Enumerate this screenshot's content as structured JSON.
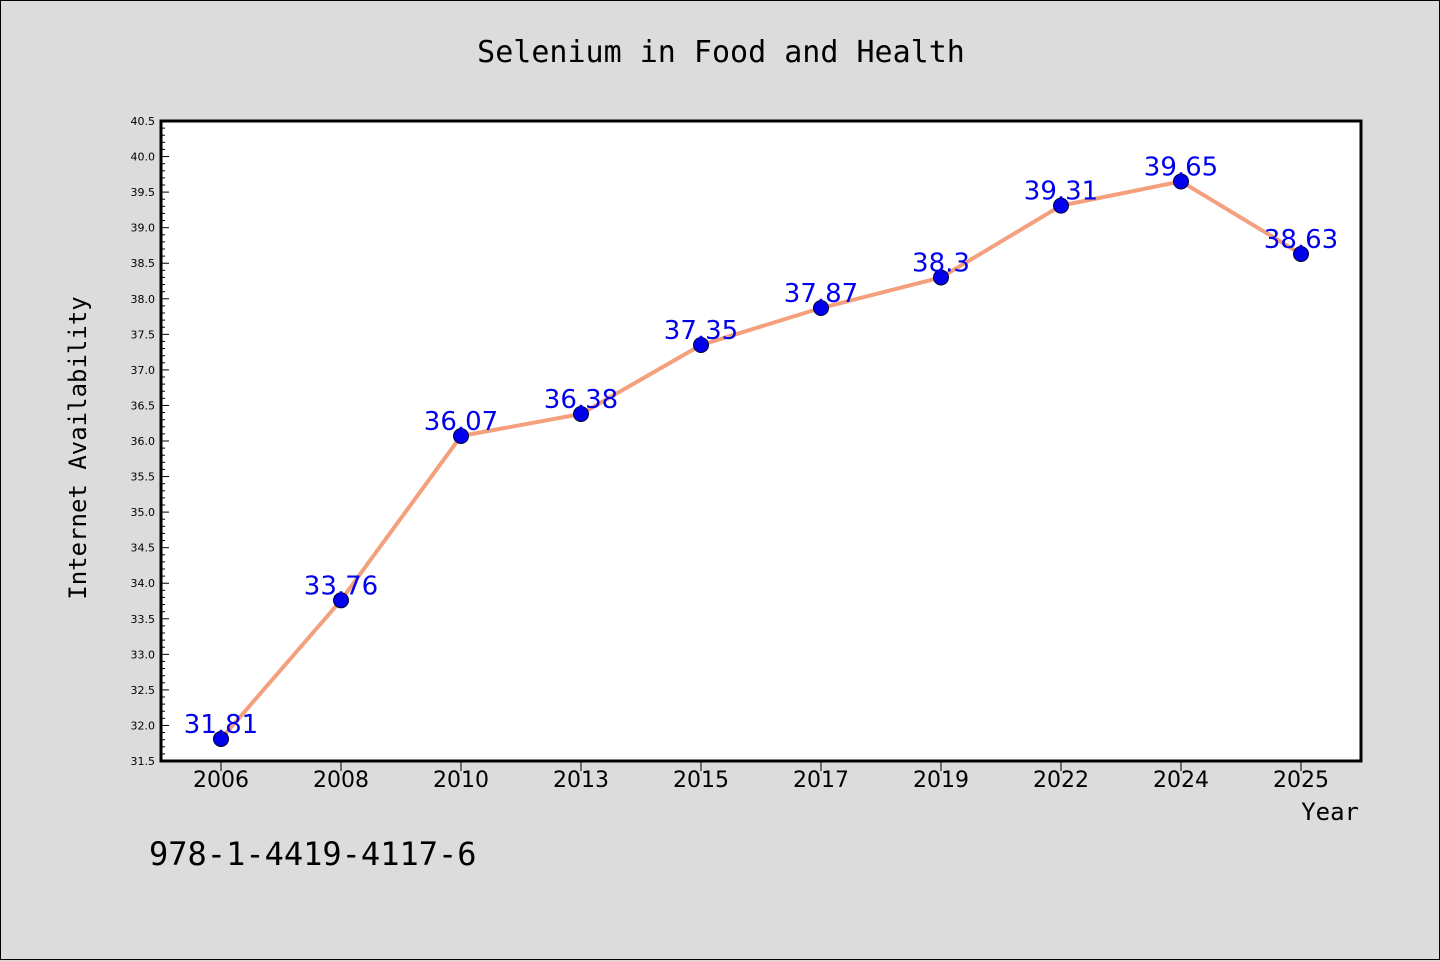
{
  "title": "Selenium in Food and Health",
  "footer_text": "978-1-4419-4117-6",
  "chart_data": {
    "type": "line",
    "title": "Selenium in Food and Health",
    "xlabel": "Year",
    "ylabel": "Internet Availability",
    "categories": [
      "2006",
      "2008",
      "2010",
      "2013",
      "2015",
      "2017",
      "2019",
      "2022",
      "2024",
      "2025"
    ],
    "series": [
      {
        "values": [
          31.81,
          33.76,
          36.07,
          36.38,
          37.35,
          37.87,
          38.3,
          39.31,
          39.65,
          38.63
        ],
        "labels": [
          "31.81",
          "33.76",
          "36.07",
          "36.38",
          "37.35",
          "37.87",
          "38.3",
          "39.31",
          "39.65",
          "38.63"
        ]
      }
    ],
    "ylim": [
      31.5,
      40.5
    ],
    "yticks": [
      "31.5",
      "32.0",
      "32.5",
      "33.0",
      "33.5",
      "34.0",
      "34.5",
      "35.0",
      "35.5",
      "36.0",
      "36.5",
      "37.0",
      "37.5",
      "38.0",
      "38.5",
      "39.0",
      "39.5",
      "40.0",
      "40.5"
    ],
    "grid": false,
    "line_color": "#f4a07c",
    "marker_color": "#0000ee",
    "label_color": "#0000ee"
  }
}
